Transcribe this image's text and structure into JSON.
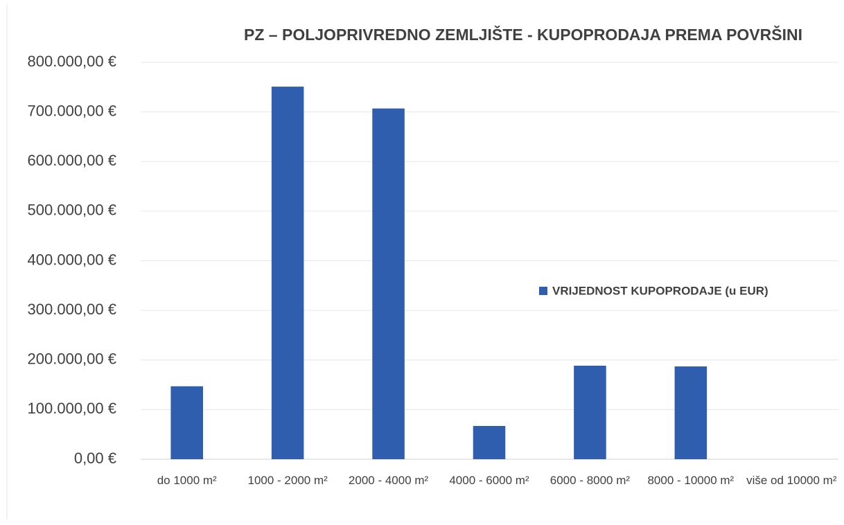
{
  "chart_data": {
    "type": "bar",
    "title": "PZ – POLJOPRIVREDNO ZEMLJIŠTE - KUPOPRODAJA PREMA POVRŠINI",
    "categories": [
      "do 1000 m²",
      "1000 - 2000 m²",
      "2000 - 4000 m²",
      "4000 - 6000 m²",
      "6000 - 8000 m²",
      "8000 - 10000 m²",
      "više od 10000 m²"
    ],
    "series": [
      {
        "name": "VRIJEDNOST KUPOPRODAJE (u EUR)",
        "color": "#2f5eae",
        "values": [
          147000,
          751000,
          707000,
          67000,
          188500,
          187000,
          0
        ]
      }
    ],
    "ylim": [
      0,
      800000
    ],
    "yticks": [
      {
        "value": 0,
        "label": "0,00 €"
      },
      {
        "value": 100000,
        "label": "100.000,00 €"
      },
      {
        "value": 200000,
        "label": "200.000,00 €"
      },
      {
        "value": 300000,
        "label": "300.000,00 €"
      },
      {
        "value": 400000,
        "label": "400.000,00 €"
      },
      {
        "value": 500000,
        "label": "500.000,00 €"
      },
      {
        "value": 600000,
        "label": "600.000,00 €"
      },
      {
        "value": 700000,
        "label": "700.000,00 €"
      },
      {
        "value": 800000,
        "label": "800.000,00 €"
      }
    ],
    "grid": true,
    "legend": "right"
  }
}
